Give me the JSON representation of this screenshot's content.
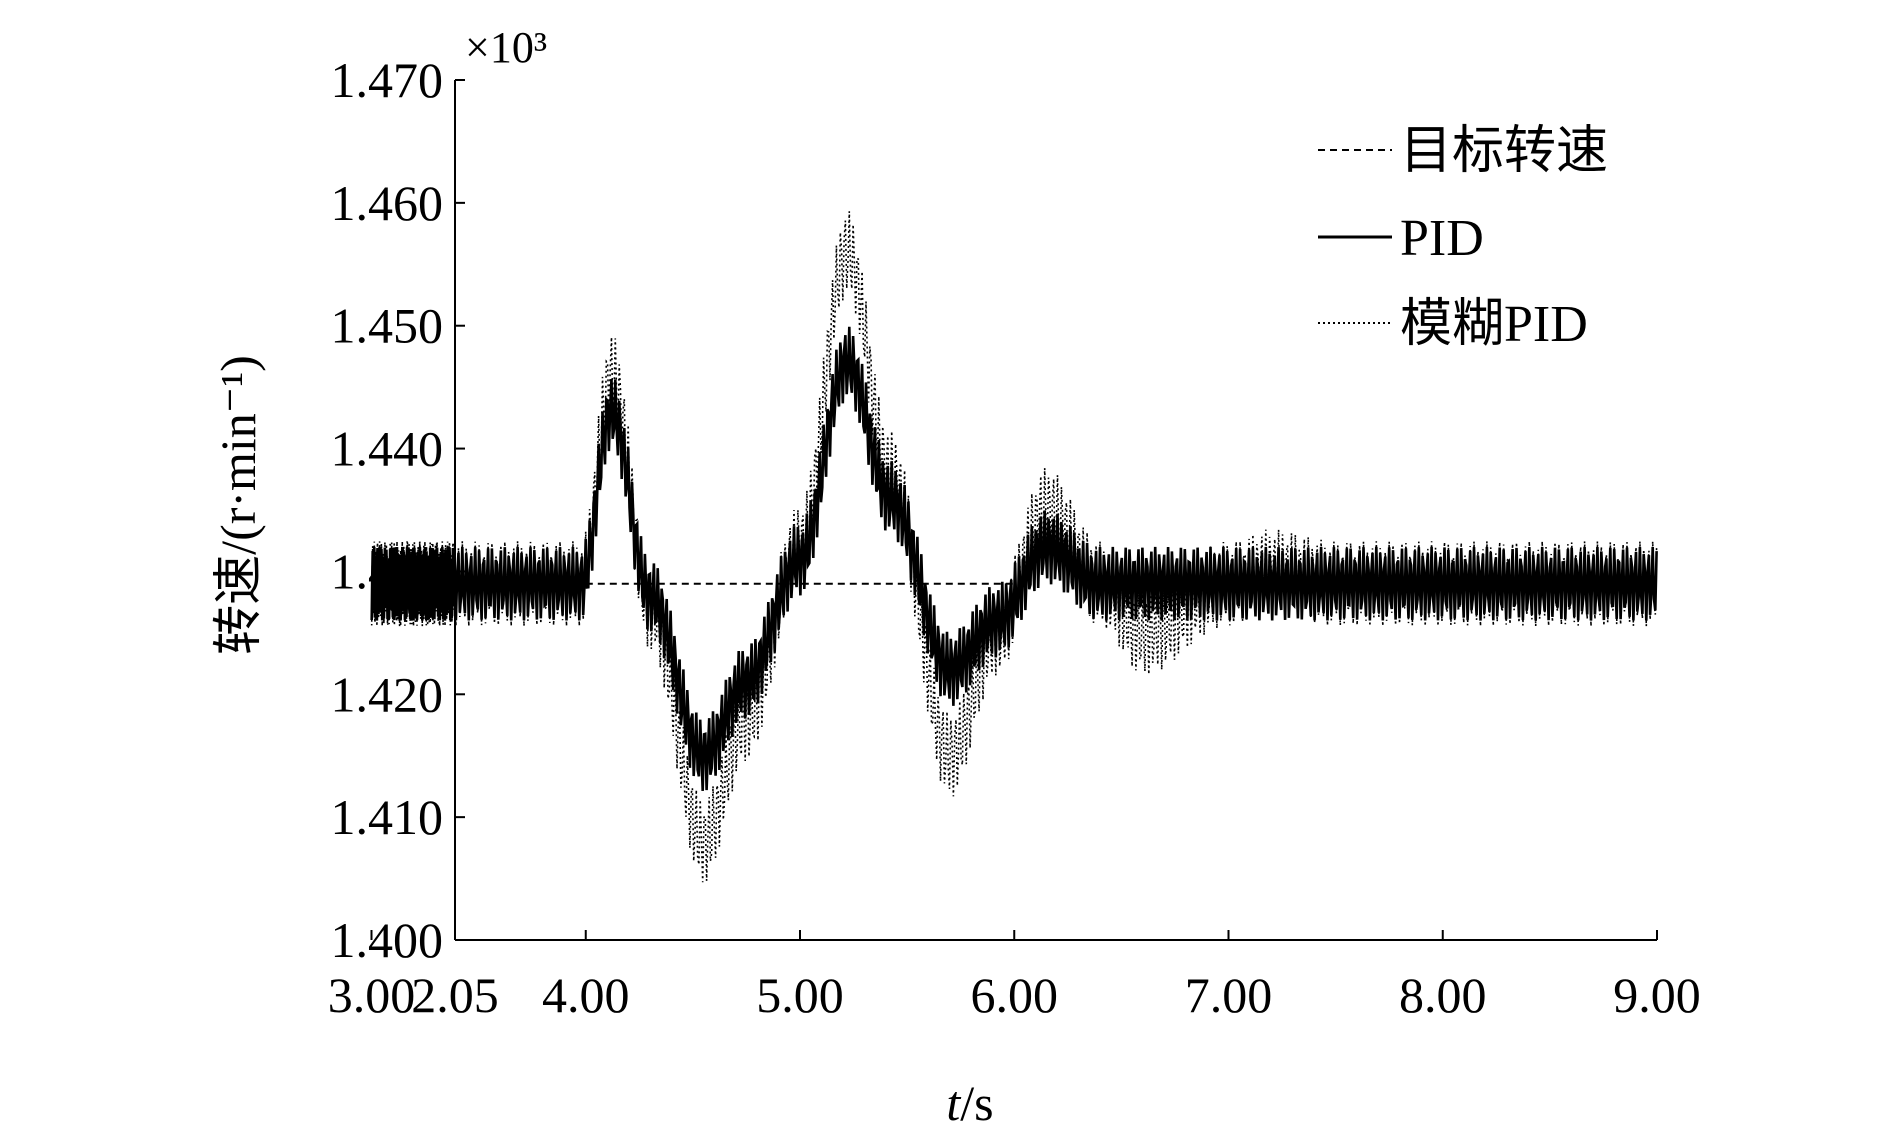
{
  "chart_data": {
    "type": "line",
    "x_unit": "s",
    "y_multiplier": "×10³",
    "xlabel_italic": "t",
    "xlabel_rest": "/s",
    "ylabel": "转速/(r·min⁻¹)",
    "xlim": [
      2.05,
      9.0
    ],
    "ylim": [
      1.4,
      1.47
    ],
    "x_ticks": [
      "2.05",
      "3.00",
      "4.00",
      "5.00",
      "6.00",
      "7.00",
      "8.00",
      "9.00"
    ],
    "x_tick_values": [
      2.05,
      3.0,
      4.0,
      5.0,
      6.0,
      7.0,
      8.0,
      9.0
    ],
    "y_ticks": [
      "1.400",
      "1.410",
      "1.420",
      "1.430",
      "1.440",
      "1.450",
      "1.460",
      "1.470"
    ],
    "y_tick_values": [
      1.4,
      1.41,
      1.42,
      1.43,
      1.44,
      1.45,
      1.46,
      1.47
    ],
    "grid": false,
    "legend_position": "top-right",
    "oscillation_note": "both controller responses carry a high-frequency ripple of about ±0.003 around the envelope shown",
    "series": [
      {
        "name": "目标转速",
        "style": "dashed",
        "x": [
          4.0,
          5.0,
          6.0
        ],
        "y": [
          1.429,
          1.429,
          1.429
        ]
      },
      {
        "name": "PID",
        "style": "solid-thick",
        "ripple": 0.003,
        "x": [
          2.05,
          3.0,
          3.98,
          4.12,
          4.3,
          4.55,
          4.75,
          5.0,
          5.22,
          5.42,
          5.7,
          5.92,
          6.15,
          6.4,
          6.6,
          7.0,
          7.5,
          8.0,
          9.0
        ],
        "y": [
          1.429,
          1.429,
          1.429,
          1.443,
          1.428,
          1.415,
          1.421,
          1.431,
          1.447,
          1.436,
          1.422,
          1.426,
          1.432,
          1.429,
          1.429,
          1.429,
          1.429,
          1.429,
          1.429
        ]
      },
      {
        "name": "模糊PID",
        "style": "dotted",
        "ripple": 0.003,
        "x": [
          2.05,
          3.0,
          3.98,
          4.12,
          4.3,
          4.55,
          4.75,
          5.0,
          5.22,
          5.42,
          5.7,
          5.92,
          6.15,
          6.4,
          6.6,
          7.0,
          7.2,
          7.5,
          8.0,
          9.0
        ],
        "y": [
          1.429,
          1.429,
          1.429,
          1.446,
          1.427,
          1.408,
          1.418,
          1.432,
          1.456,
          1.438,
          1.415,
          1.425,
          1.435,
          1.429,
          1.425,
          1.429,
          1.43,
          1.429,
          1.429,
          1.429
        ]
      }
    ]
  }
}
